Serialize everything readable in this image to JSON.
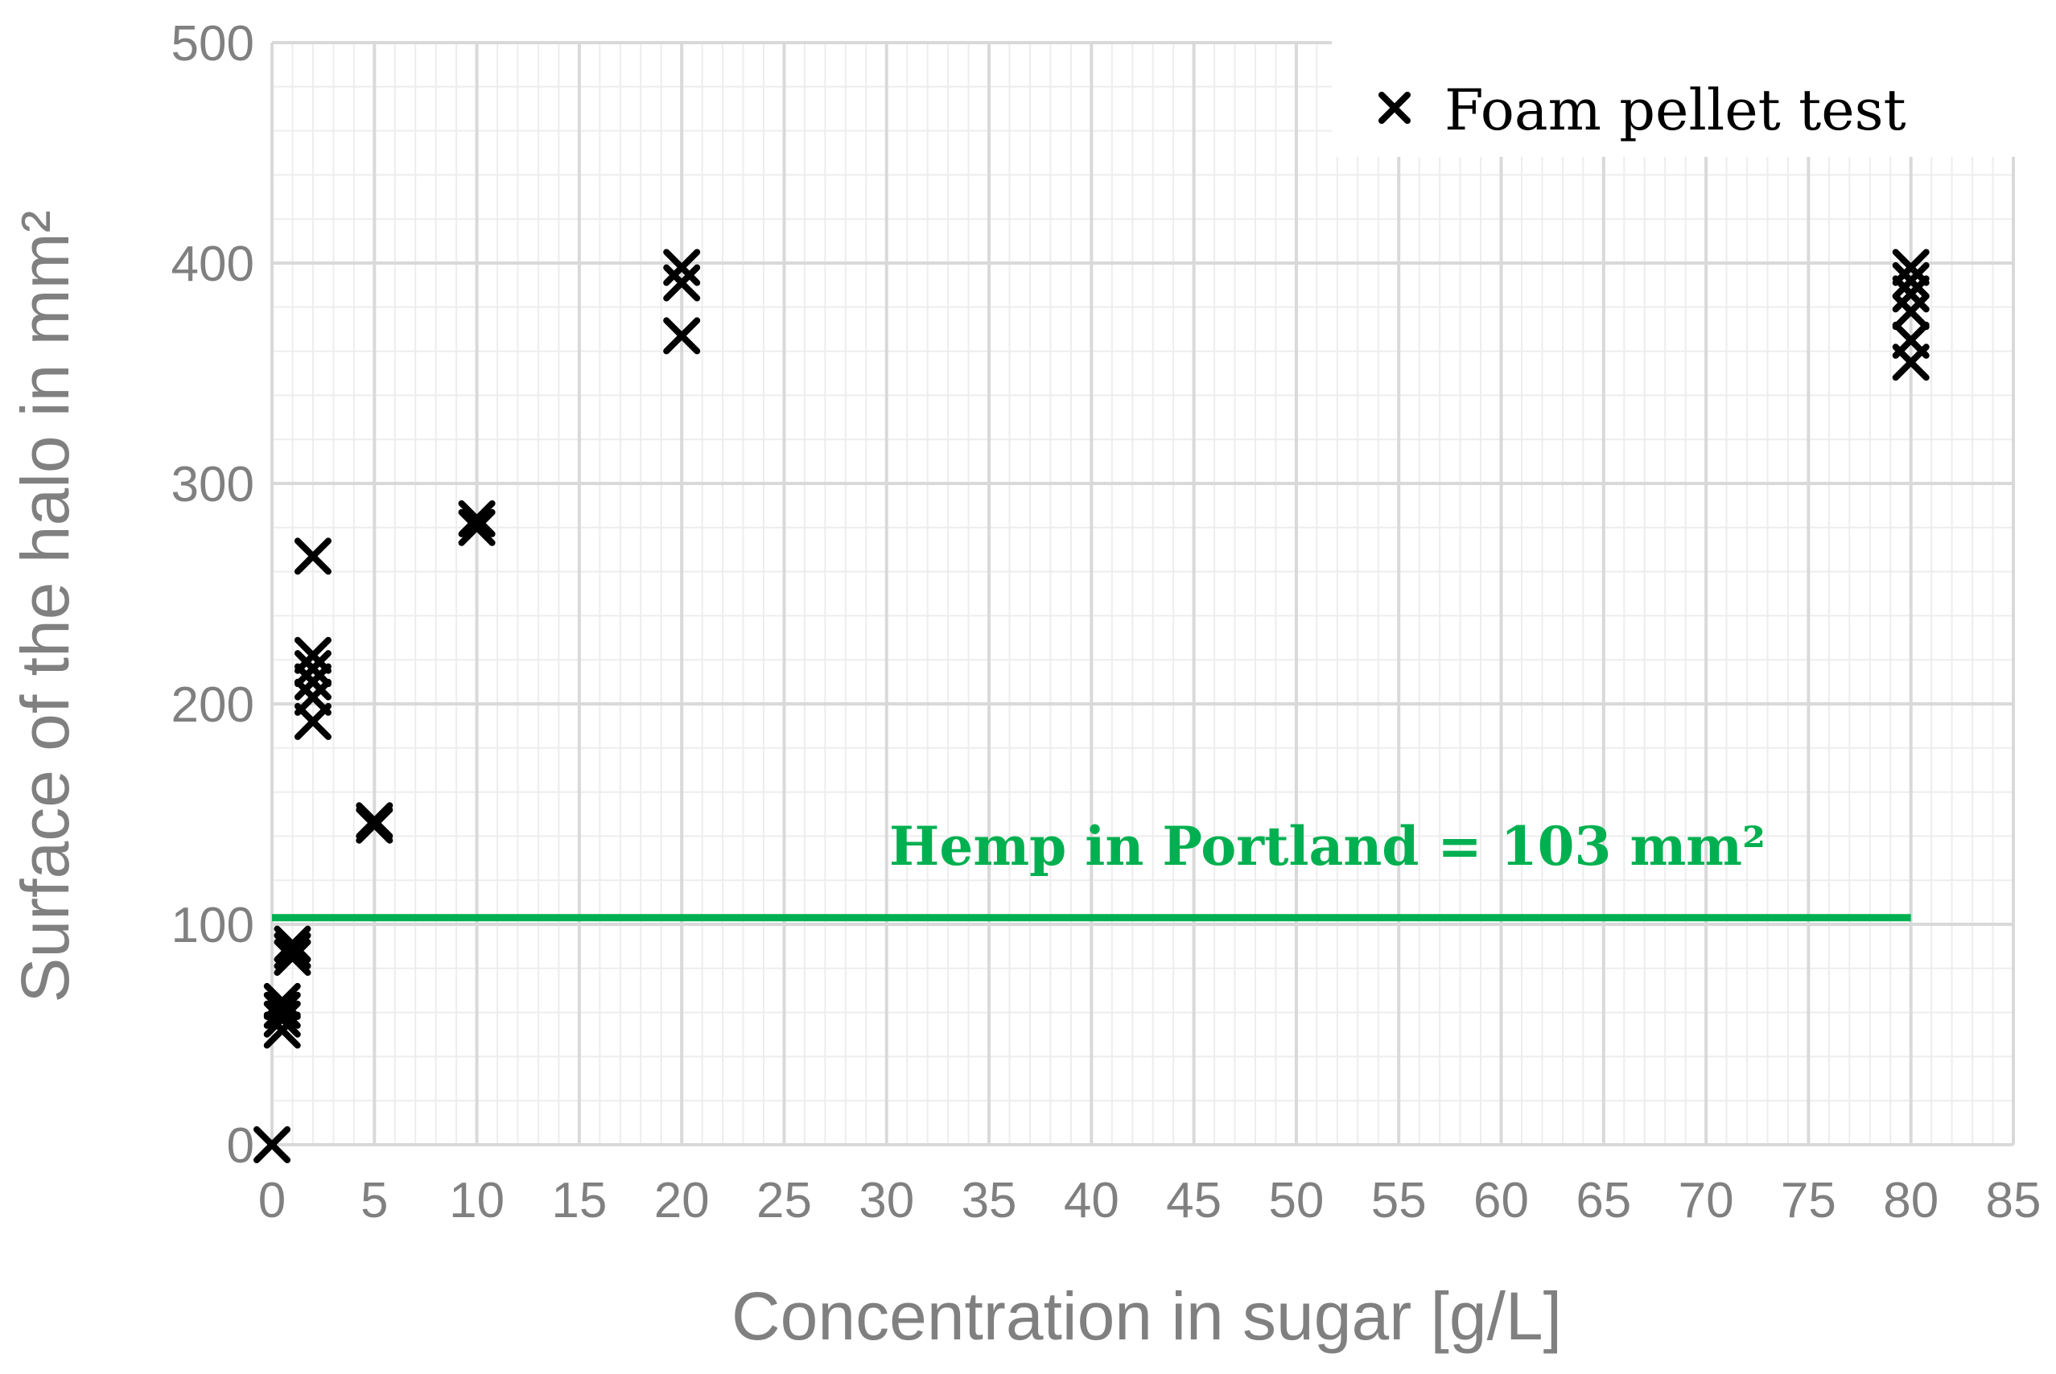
{
  "chart_data": {
    "type": "scatter",
    "xlabel": "Concentration in sugar [g/L]",
    "ylabel": "Surface of the halo in mm²",
    "xlim": [
      0,
      85
    ],
    "ylim": [
      0,
      500
    ],
    "x_ticks": [
      0,
      5,
      10,
      15,
      20,
      25,
      30,
      35,
      40,
      45,
      50,
      55,
      60,
      65,
      70,
      75,
      80,
      85
    ],
    "y_ticks": [
      0,
      100,
      200,
      300,
      400,
      500
    ],
    "x_minor_step": 1,
    "y_minor_step": 20,
    "grid": true,
    "legend_position": "top-right",
    "series": [
      {
        "name": "Foam pellet test",
        "marker": "x",
        "color": "#000000",
        "points": [
          {
            "x": 0,
            "y": 0
          },
          {
            "x": 0.5,
            "y": 52
          },
          {
            "x": 0.5,
            "y": 57
          },
          {
            "x": 0.5,
            "y": 61
          },
          {
            "x": 0.5,
            "y": 65
          },
          {
            "x": 1,
            "y": 85
          },
          {
            "x": 1,
            "y": 88
          },
          {
            "x": 1,
            "y": 91
          },
          {
            "x": 2,
            "y": 192
          },
          {
            "x": 2,
            "y": 203
          },
          {
            "x": 2,
            "y": 210
          },
          {
            "x": 2,
            "y": 216
          },
          {
            "x": 2,
            "y": 222
          },
          {
            "x": 2,
            "y": 267
          },
          {
            "x": 5,
            "y": 145
          },
          {
            "x": 5,
            "y": 147
          },
          {
            "x": 10,
            "y": 280
          },
          {
            "x": 10,
            "y": 284
          },
          {
            "x": 20,
            "y": 367
          },
          {
            "x": 20,
            "y": 391
          },
          {
            "x": 20,
            "y": 398
          },
          {
            "x": 80,
            "y": 355
          },
          {
            "x": 80,
            "y": 365
          },
          {
            "x": 80,
            "y": 378
          },
          {
            "x": 80,
            "y": 386
          },
          {
            "x": 80,
            "y": 392
          },
          {
            "x": 80,
            "y": 398
          }
        ]
      }
    ],
    "reference_line": {
      "label": "Hemp in Portland = 103 mm²",
      "y": 103,
      "x_start": 0,
      "x_end": 80,
      "color": "#00b050"
    },
    "colors": {
      "tick_text": "#808080",
      "axis_title": "#808080",
      "grid_major": "#d9d9d9",
      "grid_minor": "#ededed",
      "marker": "#000000",
      "reference": "#00b050"
    }
  }
}
